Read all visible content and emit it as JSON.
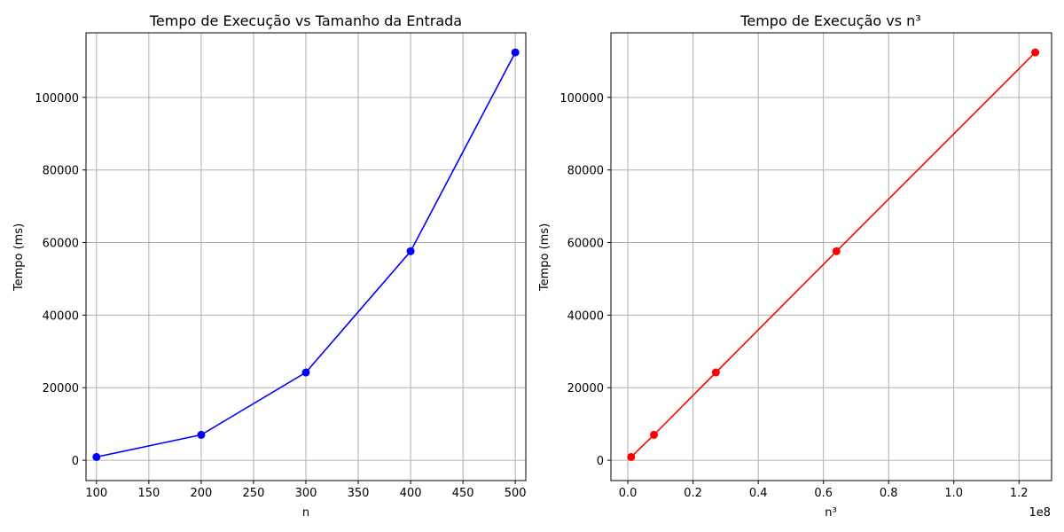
{
  "chart_data": [
    {
      "type": "line",
      "title": "Tempo de Execução vs Tamanho da Entrada",
      "xlabel": "n",
      "ylabel": "Tempo (ms)",
      "grid": true,
      "x_ticks": [
        "100",
        "150",
        "200",
        "250",
        "300",
        "350",
        "400",
        "450",
        "500"
      ],
      "y_ticks": [
        "0",
        "20000",
        "40000",
        "60000",
        "80000",
        "100000"
      ],
      "xlim": [
        90,
        510
      ],
      "ylim": [
        -5600,
        117800
      ],
      "color": "#0000ff",
      "marker": "circle",
      "series": [
        {
          "x": [
            100,
            200,
            300,
            400,
            500
          ],
          "y": [
            900,
            7000,
            24200,
            57600,
            112400
          ]
        }
      ]
    },
    {
      "type": "line",
      "title": "Tempo de Execução vs n³",
      "xlabel": "n³",
      "ylabel": "Tempo (ms)",
      "axis_offset_label": "1e8",
      "grid": true,
      "x_ticks": [
        "0.0",
        "0.2",
        "0.4",
        "0.6",
        "0.8",
        "1.0",
        "1.2"
      ],
      "y_ticks": [
        "0",
        "20000",
        "40000",
        "60000",
        "80000",
        "100000"
      ],
      "xlim": [
        -0.052,
        1.3
      ],
      "ylim": [
        -5600,
        117800
      ],
      "color": "#ff0000",
      "marker": "circle",
      "series": [
        {
          "x": [
            0.01,
            0.08,
            0.27,
            0.64,
            1.25
          ],
          "y": [
            900,
            7000,
            24200,
            57600,
            112400
          ]
        }
      ]
    }
  ]
}
